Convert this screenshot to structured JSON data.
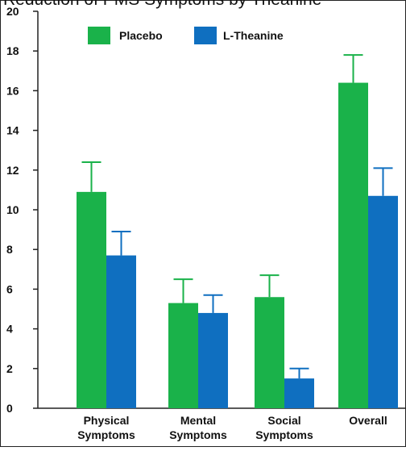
{
  "chart_data": {
    "type": "bar",
    "title": "Reduction of PMS Symptoms by Theanine",
    "categories": [
      [
        "Physical",
        "Symptoms"
      ],
      [
        "Mental",
        "Symptoms"
      ],
      [
        "Social",
        "Symptoms"
      ],
      [
        "Overall"
      ]
    ],
    "series": [
      {
        "name": "Placebo",
        "color": "#1ab24a",
        "values": [
          10.9,
          5.3,
          5.6,
          16.4
        ],
        "error_upper": [
          12.4,
          6.5,
          6.7,
          17.8
        ]
      },
      {
        "name": "L-Theanine",
        "color": "#0f6fc0",
        "values": [
          7.7,
          4.8,
          1.5,
          10.7
        ],
        "error_upper": [
          8.9,
          5.7,
          2.0,
          12.1
        ]
      }
    ],
    "ylim": [
      0,
      20
    ],
    "yticks": [
      0,
      2,
      4,
      6,
      8,
      10,
      12,
      14,
      16,
      18,
      20
    ],
    "legend_position": "top-left",
    "grid": false
  }
}
